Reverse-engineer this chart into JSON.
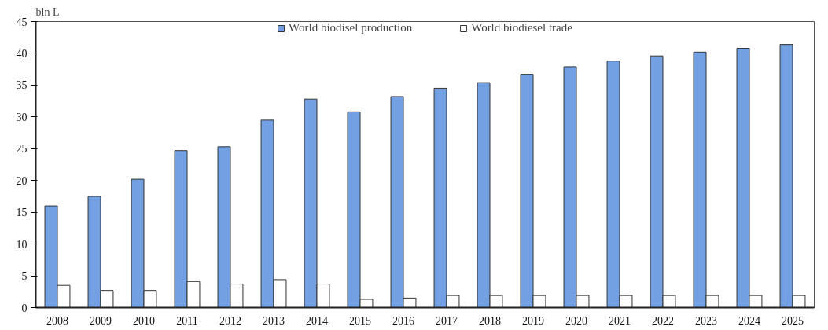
{
  "chart_data": {
    "type": "bar",
    "ylabel": "bln L",
    "categories": [
      "2008",
      "2009",
      "2010",
      "2011",
      "2012",
      "2013",
      "2014",
      "2015",
      "2016",
      "2017",
      "2018",
      "2019",
      "2020",
      "2021",
      "2022",
      "2023",
      "2024",
      "2025"
    ],
    "series": [
      {
        "name": "World biodisel production",
        "color": "#72a0e2",
        "values": [
          16.0,
          17.5,
          20.2,
          24.7,
          25.3,
          29.5,
          32.8,
          30.8,
          33.2,
          34.5,
          35.4,
          36.7,
          37.9,
          38.8,
          39.6,
          40.2,
          40.8,
          41.4
        ]
      },
      {
        "name": "World biodiesel trade",
        "color": "#ffffff",
        "values": [
          3.5,
          2.7,
          2.7,
          4.1,
          3.7,
          4.4,
          3.7,
          1.3,
          1.5,
          1.9,
          1.9,
          1.9,
          1.9,
          1.9,
          1.9,
          1.9,
          1.9,
          1.9
        ]
      }
    ],
    "ylim": [
      0,
      45
    ],
    "yticks": [
      0,
      5,
      10,
      15,
      20,
      25,
      30,
      35,
      40,
      45
    ],
    "grid": false,
    "legend": "top"
  }
}
